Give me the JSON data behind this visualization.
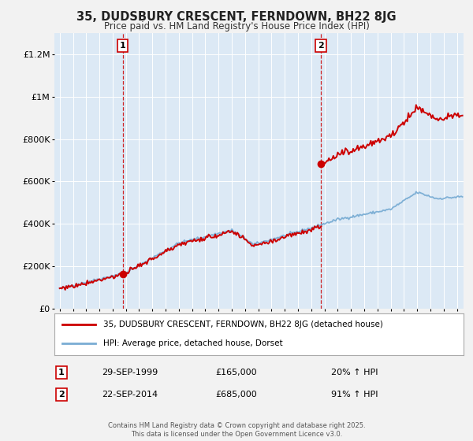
{
  "title": "35, DUDSBURY CRESCENT, FERNDOWN, BH22 8JG",
  "subtitle": "Price paid vs. HM Land Registry's House Price Index (HPI)",
  "legend_label_red": "35, DUDSBURY CRESCENT, FERNDOWN, BH22 8JG (detached house)",
  "legend_label_blue": "HPI: Average price, detached house, Dorset",
  "sale1_label": "1",
  "sale2_label": "2",
  "sale1_date": "29-SEP-1999",
  "sale1_price": "£165,000",
  "sale1_hpi": "20% ↑ HPI",
  "sale2_date": "22-SEP-2014",
  "sale2_price": "£685,000",
  "sale2_hpi": "91% ↑ HPI",
  "footnote1": "Contains HM Land Registry data © Crown copyright and database right 2025.",
  "footnote2": "This data is licensed under the Open Government Licence v3.0.",
  "sale1_year": 1999.75,
  "sale2_year": 2014.72,
  "ylim_max": 1300000,
  "fig_bg": "#f2f2f2",
  "plot_bg": "#dce9f5",
  "red_color": "#cc0000",
  "blue_color": "#7aadd4",
  "vline_color": "#cc0000",
  "grid_color": "#ffffff",
  "marker_color": "#cc0000"
}
